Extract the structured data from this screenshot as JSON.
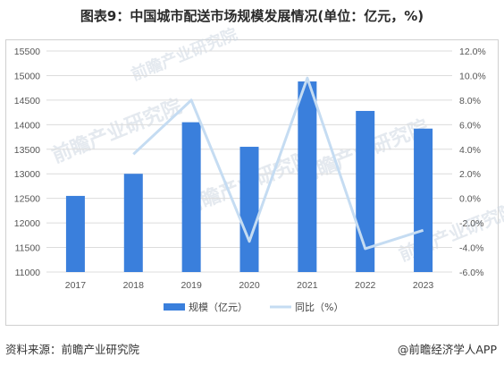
{
  "title": "图表9：中国城市配送市场规模发展情况(单位：亿元，%)",
  "watermark": "前瞻产业研究院",
  "source": "资料来源：前瞻产业研究院",
  "brand": "@前瞻经济学人APP",
  "colors": {
    "bar": "#3a7fdc",
    "line": "#c5dcf2",
    "grid": "#dcdcdc"
  },
  "chart_data": {
    "type": "bar",
    "categories": [
      "2017",
      "2018",
      "2019",
      "2020",
      "2021",
      "2022",
      "2023"
    ],
    "series": [
      {
        "name": "规模（亿元）",
        "type": "bar",
        "axis": "left",
        "values": [
          12550,
          13000,
          14050,
          13550,
          14880,
          14280,
          13920
        ]
      },
      {
        "name": "同比（%）",
        "type": "line",
        "axis": "right",
        "values": [
          null,
          3.6,
          8.0,
          -3.5,
          9.8,
          -4.1,
          -2.6
        ]
      }
    ],
    "y_left": {
      "min": 11000,
      "max": 15500,
      "step": 500
    },
    "y_right": {
      "min": -6,
      "max": 12,
      "step": 2,
      "format": "percent_1dp"
    },
    "legend_position": "bottom",
    "grid": true
  }
}
